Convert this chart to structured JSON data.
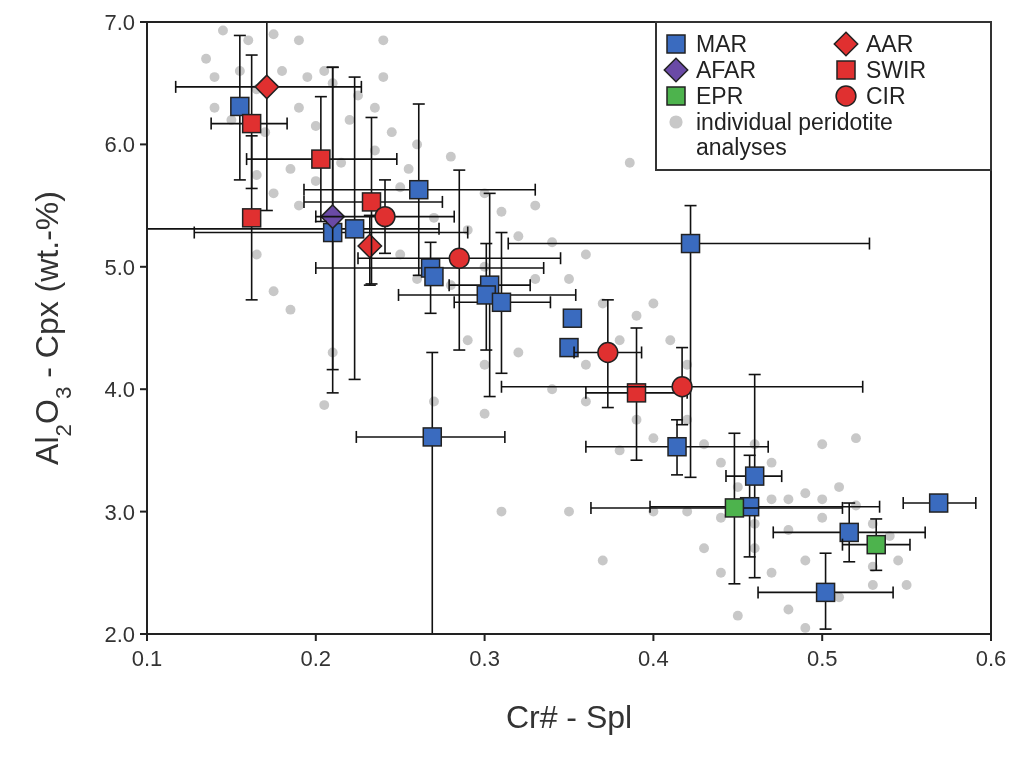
{
  "chart_data": {
    "type": "scatter",
    "xlabel": "Cr# - Spl",
    "ylabel": "Al$_{2}$O$_{3}$ - Cpx (wt.-%)",
    "xlim": [
      0.1,
      0.6
    ],
    "ylim": [
      2,
      7
    ],
    "xticks": [
      0.1,
      0.2,
      0.3,
      0.4,
      0.5,
      0.6
    ],
    "yticks": [
      {
        "value": 2,
        "label": "2.0"
      },
      {
        "value": 3,
        "label": "3.0"
      },
      {
        "value": 4,
        "label": "4.0"
      },
      {
        "value": 5,
        "label": "5.0"
      },
      {
        "value": 6,
        "label": "6.0"
      },
      {
        "value": 7,
        "label": "7.0"
      }
    ],
    "grid": false,
    "legend": "top right",
    "series": [
      {
        "name": "individual peridotite analyses",
        "color": "#c8c8c8",
        "marker": "circle",
        "x": [
          0.145,
          0.16,
          0.175,
          0.19,
          0.135,
          0.155,
          0.14,
          0.165,
          0.18,
          0.195,
          0.205,
          0.21,
          0.225,
          0.24,
          0.235,
          0.19,
          0.15,
          0.17,
          0.2,
          0.22,
          0.245,
          0.26,
          0.255,
          0.235,
          0.215,
          0.185,
          0.165,
          0.28,
          0.3,
          0.27,
          0.25,
          0.29,
          0.31,
          0.33,
          0.32,
          0.34,
          0.2,
          0.19,
          0.175,
          0.25,
          0.26,
          0.28,
          0.3,
          0.33,
          0.35,
          0.36,
          0.37,
          0.39,
          0.4,
          0.38,
          0.36,
          0.32,
          0.29,
          0.3,
          0.41,
          0.42,
          0.34,
          0.36,
          0.39,
          0.38,
          0.4,
          0.42,
          0.43,
          0.44,
          0.46,
          0.47,
          0.45,
          0.47,
          0.48,
          0.49,
          0.5,
          0.51,
          0.5,
          0.48,
          0.46,
          0.44,
          0.52,
          0.53,
          0.54,
          0.545,
          0.53,
          0.49,
          0.47,
          0.48,
          0.51,
          0.46,
          0.43,
          0.44,
          0.42,
          0.4,
          0.37,
          0.35,
          0.31,
          0.3,
          0.27,
          0.21,
          0.205,
          0.175,
          0.165,
          0.14,
          0.386,
          0.24,
          0.185,
          0.52,
          0.5,
          0.53,
          0.55,
          0.49,
          0.45
        ],
        "values": [
          6.93,
          6.85,
          6.9,
          6.85,
          6.7,
          6.6,
          6.55,
          6.45,
          6.6,
          6.55,
          6.6,
          6.5,
          6.4,
          6.55,
          6.3,
          6.3,
          6.2,
          6.1,
          6.15,
          6.2,
          6.1,
          6.0,
          5.8,
          5.95,
          5.85,
          5.8,
          5.75,
          5.9,
          5.6,
          5.4,
          5.65,
          5.3,
          5.45,
          5.5,
          5.25,
          5.2,
          5.7,
          5.5,
          5.6,
          5.1,
          4.9,
          4.85,
          5.0,
          4.9,
          4.9,
          5.1,
          4.7,
          4.6,
          4.7,
          4.4,
          4.2,
          4.3,
          4.4,
          4.2,
          4.4,
          4.2,
          4.0,
          3.9,
          3.75,
          3.5,
          3.6,
          3.75,
          3.55,
          3.4,
          3.55,
          3.4,
          3.2,
          3.1,
          3.1,
          3.15,
          3.1,
          3.2,
          2.95,
          2.85,
          2.9,
          2.95,
          3.05,
          2.9,
          2.8,
          2.6,
          2.4,
          2.6,
          2.5,
          2.2,
          2.3,
          2.7,
          2.7,
          2.5,
          3.0,
          3.0,
          2.6,
          3.0,
          3.0,
          3.8,
          3.9,
          4.3,
          3.87,
          4.8,
          5.1,
          6.3,
          5.85,
          6.85,
          4.65,
          3.6,
          3.55,
          2.55,
          2.4,
          2.05,
          2.15
        ]
      },
      {
        "name": "MAR",
        "color": "#3a6bbf",
        "marker": "square",
        "x": [
          0.155,
          0.261,
          0.21,
          0.223,
          0.268,
          0.27,
          0.303,
          0.301,
          0.31,
          0.352,
          0.35,
          0.269,
          0.422,
          0.414,
          0.46,
          0.457,
          0.516,
          0.569,
          0.502
        ],
        "values": [
          6.31,
          5.63,
          5.28,
          5.31,
          4.99,
          4.92,
          4.85,
          4.77,
          4.71,
          4.58,
          4.34,
          3.61,
          5.19,
          3.53,
          3.29,
          3.04,
          2.83,
          3.07,
          2.34
        ],
        "errors": [
          [
            5.71,
            6.89
          ],
          [
            4.93,
            6.33
          ],
          [
            3.97,
            6.63
          ],
          [
            4.08,
            6.55
          ],
          [
            4.62,
            5.2
          ],
          null,
          [
            3.94,
            5.6
          ],
          [
            4.32,
            5.19
          ],
          [
            4.13,
            5.28
          ],
          null,
          null,
          [
            2,
            4.3
          ],
          [
            3.28,
            5.5
          ],
          [
            3.3,
            3.75
          ],
          [
            2.46,
            4.12
          ],
          [
            2.63,
            3.46
          ],
          [
            2.59,
            3.07
          ],
          null,
          [
            2.04,
            2.66
          ]
        ],
        "xerrors": [
          null,
          [
            0.193,
            0.33
          ],
          [
            0.128,
            0.29
          ],
          [
            0.1,
            0.273
          ],
          [
            0.2,
            0.335
          ],
          null,
          [
            0.279,
            0.327
          ],
          [
            0.249,
            0.354
          ],
          [
            0.282,
            0.339
          ],
          null,
          null,
          [
            0.224,
            0.312
          ],
          [
            0.314,
            0.528
          ],
          [
            0.36,
            0.468
          ],
          [
            0.443,
            0.476
          ],
          [
            0.398,
            0.534
          ],
          [
            0.471,
            0.561
          ],
          [
            0.548,
            0.591
          ],
          [
            0.462,
            0.542
          ]
        ]
      },
      {
        "name": "AFAR",
        "color": "#6a4aa6",
        "marker": "diamond",
        "x": [
          0.21
        ],
        "values": [
          5.41
        ],
        "errors": [
          [
            4.16,
            6.63
          ]
        ]
      },
      {
        "name": "EPR",
        "color": "#4db34d",
        "marker": "square",
        "x": [
          0.448,
          0.532
        ],
        "values": [
          3.03,
          2.73
        ],
        "errors": [
          [
            2.41,
            3.64
          ],
          [
            2.52,
            2.94
          ]
        ],
        "xerrors": [
          [
            0.363,
            0.512
          ],
          [
            0.512,
            0.552
          ]
        ]
      },
      {
        "name": "AAR",
        "color": "#e03030",
        "marker": "diamond",
        "x": [
          0.171,
          0.232
        ],
        "values": [
          6.47,
          5.17
        ],
        "errors": [
          [
            5.46,
            7.0
          ],
          [
            4.85,
            5.42
          ]
        ],
        "xerrors": [
          [
            0.117,
            0.227
          ],
          null
        ]
      },
      {
        "name": "SWIR",
        "color": "#e03030",
        "marker": "square",
        "x": [
          0.162,
          0.162,
          0.203,
          0.233,
          0.39
        ],
        "values": [
          6.17,
          5.4,
          5.88,
          5.53,
          3.97
        ],
        "errors": [
          [
            5.64,
            6.73
          ],
          [
            4.73,
            6.07
          ],
          [
            5.37,
            6.39
          ],
          [
            4.86,
            6.22
          ],
          [
            3.42,
            4.5
          ]
        ],
        "xerrors": [
          [
            0.138,
            0.183
          ],
          null,
          [
            0.159,
            0.248
          ],
          [
            0.193,
            0.275
          ],
          [
            0.36,
            0.42
          ]
        ]
      },
      {
        "name": "CIR",
        "color": "#e03030",
        "marker": "circle",
        "x": [
          0.241,
          0.285,
          0.373,
          0.417
        ],
        "values": [
          5.41,
          5.07,
          4.3,
          4.02
        ],
        "errors": [
          [
            5.11,
            5.71
          ],
          [
            4.32,
            5.79
          ],
          [
            3.85,
            4.73
          ],
          [
            3.71,
            4.34
          ]
        ],
        "xerrors": [
          [
            0.2,
            0.282
          ],
          [
            0.225,
            0.345
          ],
          [
            0.353,
            0.393
          ],
          [
            0.31,
            0.524
          ]
        ]
      }
    ]
  }
}
